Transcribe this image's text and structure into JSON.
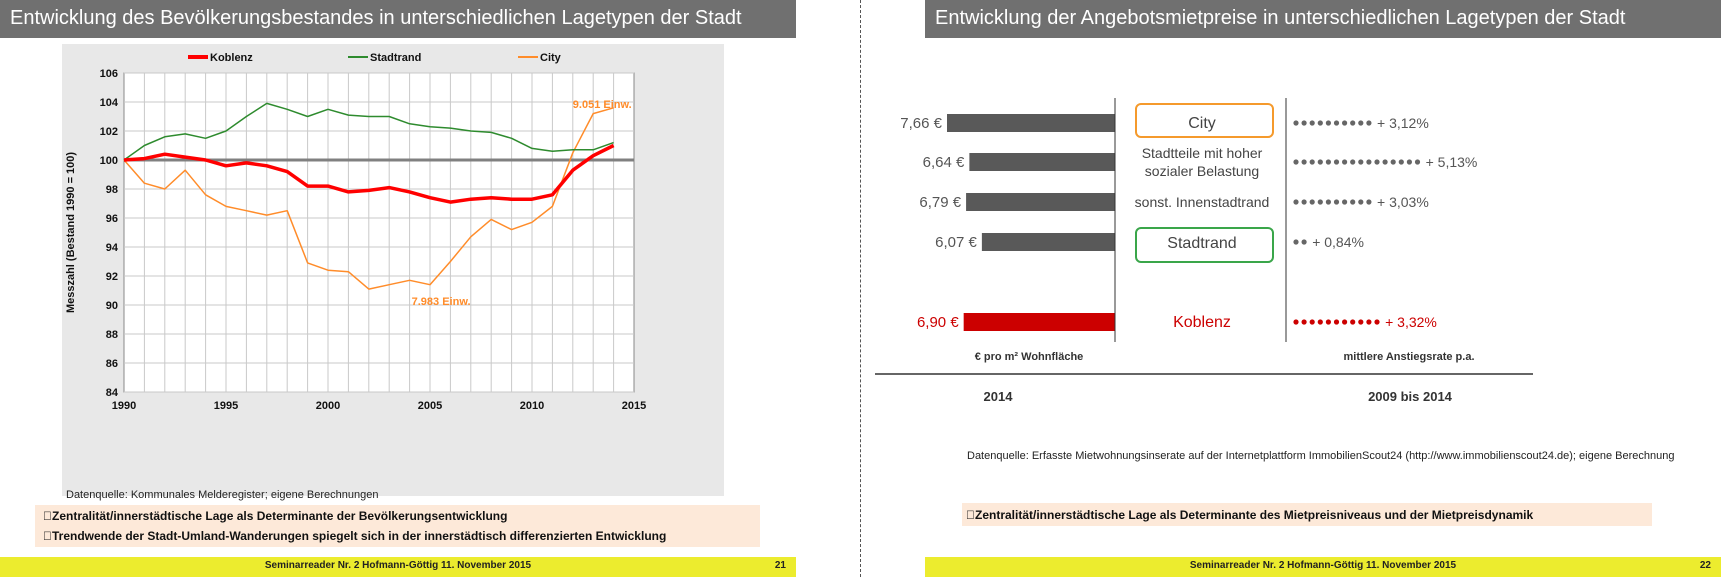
{
  "left_slide": {
    "title": "Entwicklung des Bevölkerungsbestandes in unterschiedlichen Lagetypen der Stadt",
    "source": "Datenquelle: Kommunales Melderegister; eigene Berechnungen",
    "bullets": [
      "Zentralität/innerstädtische Lage als Determinante der Bevölkerungsentwicklung",
      "Trendwende der Stadt-Umland-Wanderungen spiegelt sich in der innerstädtisch differenzierten Entwicklung"
    ],
    "footer": "Seminarreader Nr. 2 Hofmann-Göttig 11. November 2015",
    "page_number": "21"
  },
  "right_slide": {
    "title": "Entwicklung der Angebotsmietpreise in unterschiedlichen Lagetypen der Stadt",
    "source": "Datenquelle: Erfasste Mietwohnungsinserate auf der Internetplattform ImmobilienScout24 (http://www.immobilienscout24.de); eigene Berechnung",
    "bullet": "Zentralität/innerstädtische Lage als Determinante des Mietpreisniveaus und der Mietpreisdynamik",
    "footer": "Seminarreader Nr. 2 Hofmann-Göttig 11. November 2015",
    "page_number": "22"
  },
  "colors": {
    "title_bar": "#707070",
    "footer_bar": "#ecec2e",
    "bullet_bg": "#fde9d9",
    "koblenz": "#ff0000",
    "stadtrand": "#2e8b2e",
    "city": "#ff8c2a",
    "rent_bar": "#595959",
    "rent_bar_koblenz": "#cc0000",
    "city_box": "#f59a2c",
    "stadtrand_box": "#3aa64a"
  },
  "chart_data": [
    {
      "type": "line",
      "title": "",
      "xlabel": "",
      "ylabel": "Messzahl (Bestand 1990 = 100)",
      "xlim": [
        1990,
        2015
      ],
      "ylim": [
        84,
        106
      ],
      "x_ticks": [
        "1990",
        "1995",
        "2000",
        "2005",
        "2010",
        "2015"
      ],
      "y_ticks": [
        "84",
        "86",
        "88",
        "90",
        "92",
        "94",
        "96",
        "98",
        "100",
        "102",
        "104",
        "106"
      ],
      "grid": true,
      "legend": "top",
      "reference_line": 100,
      "x": [
        1990,
        1991,
        1992,
        1993,
        1994,
        1995,
        1996,
        1997,
        1998,
        1999,
        2000,
        2001,
        2002,
        2003,
        2004,
        2005,
        2006,
        2007,
        2008,
        2009,
        2010,
        2011,
        2012,
        2013,
        2014
      ],
      "series": [
        {
          "name": "Koblenz",
          "values": [
            100.0,
            100.1,
            100.4,
            100.2,
            100.0,
            99.6,
            99.8,
            99.6,
            99.2,
            98.2,
            98.2,
            97.8,
            97.9,
            98.1,
            97.8,
            97.4,
            97.1,
            97.3,
            97.4,
            97.3,
            97.3,
            97.6,
            99.3,
            100.3,
            101.0
          ]
        },
        {
          "name": "Stadtrand",
          "values": [
            100.0,
            101.0,
            101.6,
            101.8,
            101.5,
            102.0,
            103.0,
            103.9,
            103.5,
            103.0,
            103.5,
            103.1,
            103.0,
            103.0,
            102.5,
            102.3,
            102.2,
            102.0,
            101.9,
            101.5,
            100.8,
            100.6,
            100.7,
            100.7,
            101.2
          ]
        },
        {
          "name": "City",
          "values": [
            100.0,
            98.4,
            98.0,
            99.3,
            97.6,
            96.8,
            96.5,
            96.2,
            96.5,
            92.9,
            92.4,
            92.3,
            91.1,
            91.4,
            91.7,
            91.4,
            93.0,
            94.7,
            95.9,
            95.2,
            95.7,
            96.8,
            100.5,
            103.2,
            103.6
          ]
        }
      ],
      "annotations": [
        {
          "text": "9.051 Einw.",
          "x": 2012.0,
          "y": 103.6
        },
        {
          "text": "7.983 Einw.",
          "x": 2004.1,
          "y": 90.0
        }
      ]
    },
    {
      "type": "bar",
      "orientation": "horizontal",
      "categories": [
        "City",
        "Stadtteile mit hoher sozialer Belastung",
        "sonst. Innenstadtrand",
        "Stadtrand",
        "Koblenz"
      ],
      "values": [
        7.66,
        6.64,
        6.79,
        6.07,
        6.9
      ],
      "value_labels": [
        "7,66 €",
        "6,64 €",
        "6,79 €",
        "6,07 €",
        "6,90 €"
      ],
      "bar_axis_label": "€ pro m² Wohnfläche",
      "bar_year_label": "2014",
      "growth_rates": [
        3.12,
        5.13,
        3.03,
        0.84,
        3.32
      ],
      "growth_labels": [
        "+ 3,12%",
        "+ 5,13%",
        "+ 3,03%",
        "+ 0,84%",
        "+ 3,32%"
      ],
      "growth_axis_label": "mittlere Anstiegsrate p.a.",
      "growth_period_label": "2009 bis 2014",
      "dot_counts": [
        10,
        16,
        10,
        2,
        11
      ]
    }
  ]
}
